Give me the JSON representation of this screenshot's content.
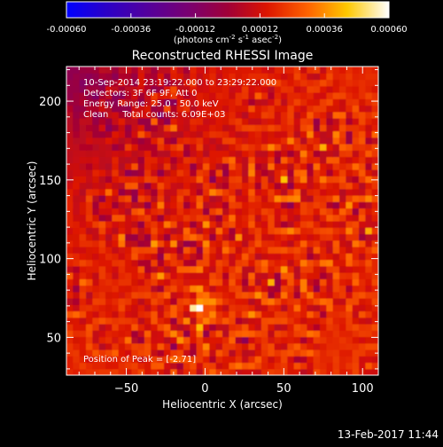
{
  "colorbar": {
    "tick_labels": [
      "-0.00060",
      "-0.00036",
      "-0.00012",
      "0.00012",
      "0.00036",
      "0.00060"
    ],
    "ticks": [
      -0.0006,
      -0.00036,
      -0.00012,
      0.00012,
      0.00036,
      0.0006
    ],
    "range": [
      -0.0006,
      0.0006
    ],
    "unit_label_parts": [
      "(photons cm",
      "-2",
      " s",
      "-1",
      " asec",
      "-2",
      ")"
    ]
  },
  "chart_data": {
    "type": "heatmap",
    "title": "Reconstructed RHESSI Image",
    "xlabel": "Heliocentric X (arcsec)",
    "ylabel": "Heliocentric Y (arcsec)",
    "xlim": [
      -88,
      110
    ],
    "ylim": [
      26,
      222
    ],
    "xticks": [
      -50,
      0,
      50,
      100
    ],
    "yticks": [
      50,
      100,
      150,
      200
    ],
    "xtick_labels": [
      "−50",
      "0",
      "50",
      "100"
    ],
    "ytick_labels": [
      "50",
      "100",
      "150",
      "200"
    ],
    "grid": false,
    "colormap": "rhessi-red-hot",
    "annotations": [
      "10-Sep-2014 23:19:22.000 to 23:29:22.000",
      "Detectors: 3F 6F 9F, Att 0",
      "Energy Range: 25.0 - 50.0 keV",
      "Clean     Total counts: 6.09E+03"
    ],
    "peak_label": "Position of Peak = [-2.71]",
    "peak_position": [
      -3,
      70
    ]
  },
  "footer": {
    "timestamp": "13-Feb-2017 11:44"
  },
  "colors": {
    "background": "#000000",
    "text": "#ffffff"
  }
}
